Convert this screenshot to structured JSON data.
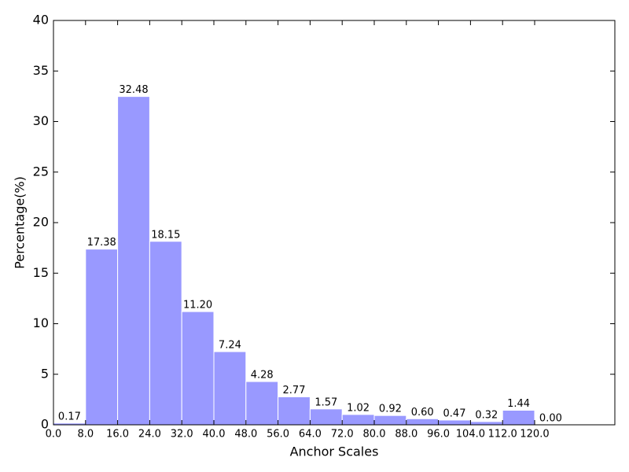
{
  "chart_data": {
    "type": "histogram",
    "xlabel": "Anchor Scales",
    "ylabel": "Percentage(%)",
    "bins": [
      0,
      8,
      16,
      24,
      32,
      40,
      48,
      56,
      64,
      72,
      80,
      88,
      96,
      104,
      112,
      120,
      128
    ],
    "values": [
      0.17,
      17.38,
      32.48,
      18.15,
      11.2,
      7.24,
      4.28,
      2.77,
      1.57,
      1.02,
      0.92,
      0.6,
      0.47,
      0.32,
      1.44,
      0
    ],
    "value_labels": [
      "0.17",
      "17.38",
      "32.48",
      "18.15",
      "11.20",
      "7.24",
      "4.28",
      "2.77",
      "1.57",
      "1.02",
      "0.92",
      "0.60",
      "0.47",
      "0.32",
      "1.44",
      "0.00"
    ],
    "color": "#9999ff",
    "xlim": [
      0,
      140
    ],
    "xticks": [
      {
        "value": 0,
        "label": "0.0"
      },
      {
        "value": 8,
        "label": "8.0"
      },
      {
        "value": 16,
        "label": "16.0"
      },
      {
        "value": 24,
        "label": "24.0"
      },
      {
        "value": 32,
        "label": "32.0"
      },
      {
        "value": 40,
        "label": "40.0"
      },
      {
        "value": 48,
        "label": "48.0"
      },
      {
        "value": 56,
        "label": "56.0"
      },
      {
        "value": 64,
        "label": "64.0"
      },
      {
        "value": 72,
        "label": "72.0"
      },
      {
        "value": 80,
        "label": "80.0"
      },
      {
        "value": 88,
        "label": "88.0"
      },
      {
        "value": 96,
        "label": "96.0"
      },
      {
        "value": 104,
        "label": "104.0"
      },
      {
        "value": 112,
        "label": "112.0"
      },
      {
        "value": 120,
        "label": "120.0"
      }
    ],
    "ylim": [
      0,
      40
    ],
    "yticks": [
      0,
      5,
      10,
      15,
      20,
      25,
      30,
      35,
      40
    ],
    "grid": false
  }
}
